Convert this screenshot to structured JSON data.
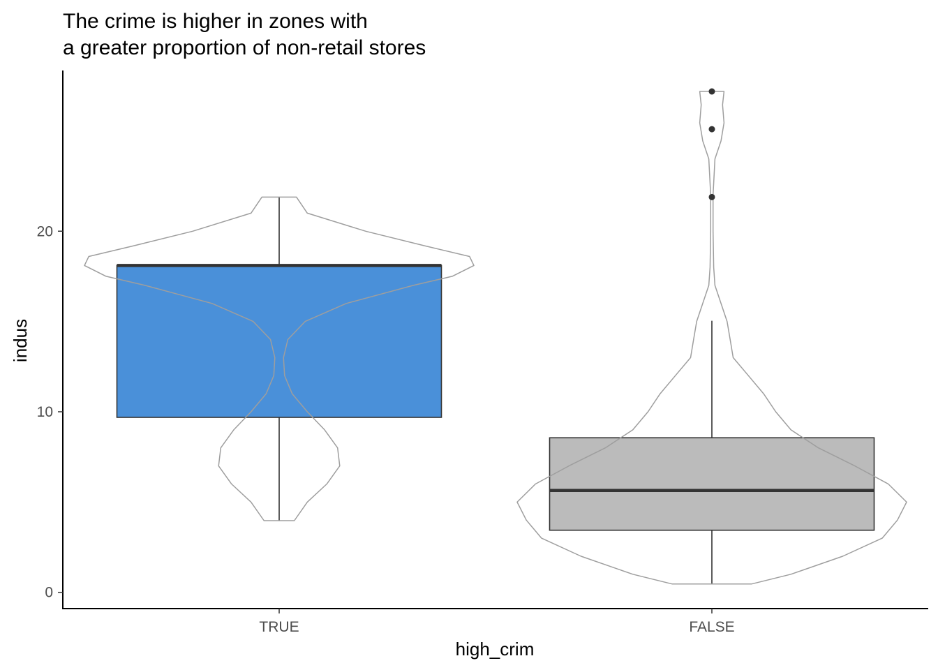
{
  "chart_data": {
    "type": "box",
    "title": "The crime is higher in zones with\na greater proportion of non-retail stores",
    "xlabel": "high_crim",
    "ylabel": "indus",
    "categories": [
      "TRUE",
      "FALSE"
    ],
    "ylim": [
      -0.9,
      28.9
    ],
    "y_ticks": [
      0,
      10,
      20
    ],
    "grid": false,
    "legend": "none",
    "boxes": [
      {
        "category": "TRUE",
        "fill": "#4A90D9",
        "min": 3.97,
        "q1": 9.69,
        "median": 18.1,
        "q3": 18.1,
        "max": 21.89,
        "outliers": []
      },
      {
        "category": "FALSE",
        "fill": "#BBBBBB",
        "min": 0.46,
        "q1": 3.44,
        "median": 5.64,
        "q3": 8.56,
        "max": 15.04,
        "outliers": [
          21.89,
          25.65,
          27.74
        ]
      }
    ],
    "violins": [
      {
        "category": "TRUE",
        "density": [
          [
            3.97,
            0.07
          ],
          [
            5.0,
            0.13
          ],
          [
            6.0,
            0.22
          ],
          [
            7.0,
            0.28
          ],
          [
            8.0,
            0.27
          ],
          [
            9.0,
            0.21
          ],
          [
            10.0,
            0.13
          ],
          [
            11.0,
            0.06
          ],
          [
            12.0,
            0.025
          ],
          [
            13.0,
            0.02
          ],
          [
            14.0,
            0.04
          ],
          [
            15.0,
            0.12
          ],
          [
            16.0,
            0.31
          ],
          [
            17.0,
            0.62
          ],
          [
            17.5,
            0.8
          ],
          [
            18.1,
            0.9
          ],
          [
            18.6,
            0.88
          ],
          [
            19.2,
            0.67
          ],
          [
            20.0,
            0.4
          ],
          [
            21.0,
            0.13
          ],
          [
            21.89,
            0.08
          ]
        ]
      },
      {
        "category": "FALSE",
        "density": [
          [
            0.46,
            0.13
          ],
          [
            1.0,
            0.26
          ],
          [
            2.0,
            0.43
          ],
          [
            3.0,
            0.56
          ],
          [
            4.0,
            0.61
          ],
          [
            5.0,
            0.64
          ],
          [
            6.0,
            0.58
          ],
          [
            7.0,
            0.47
          ],
          [
            8.0,
            0.35
          ],
          [
            9.0,
            0.26
          ],
          [
            10.0,
            0.21
          ],
          [
            11.0,
            0.17
          ],
          [
            12.0,
            0.12
          ],
          [
            13.0,
            0.07
          ],
          [
            14.0,
            0.06
          ],
          [
            15.0,
            0.05
          ],
          [
            16.0,
            0.03
          ],
          [
            17.0,
            0.01
          ],
          [
            18.0,
            0.006
          ],
          [
            20.0,
            0.004
          ],
          [
            22.0,
            0.004
          ],
          [
            24.0,
            0.01
          ],
          [
            25.0,
            0.03
          ],
          [
            26.0,
            0.04
          ],
          [
            27.0,
            0.035
          ],
          [
            27.74,
            0.04
          ]
        ]
      }
    ]
  }
}
